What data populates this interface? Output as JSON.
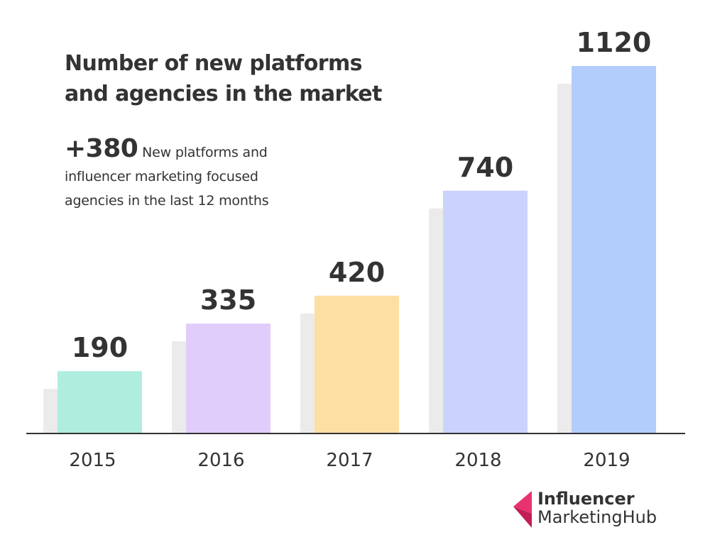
{
  "chart_data": {
    "type": "bar",
    "title": [
      "Number of new platforms",
      "and agencies in the market"
    ],
    "annotation": {
      "value": "+380",
      "lines": [
        "New platforms and",
        "influencer marketing focused",
        "agencies in the last 12 months"
      ]
    },
    "categories": [
      "2015",
      "2016",
      "2017",
      "2018",
      "2019"
    ],
    "values": [
      190,
      335,
      420,
      740,
      1120
    ],
    "colors": [
      "#afeddf",
      "#e1cdfb",
      "#fddfa3",
      "#cbd3fc",
      "#b2cdfb"
    ],
    "shadow_color": "#ebebeb",
    "axis_color": "#333333",
    "ylim": [
      0,
      1120
    ],
    "grid": false,
    "legend": "none"
  },
  "branding": {
    "line1": "Influencer",
    "line2": "MarketingHub",
    "mark_colors": [
      "#e8336e",
      "#c21e58"
    ]
  }
}
